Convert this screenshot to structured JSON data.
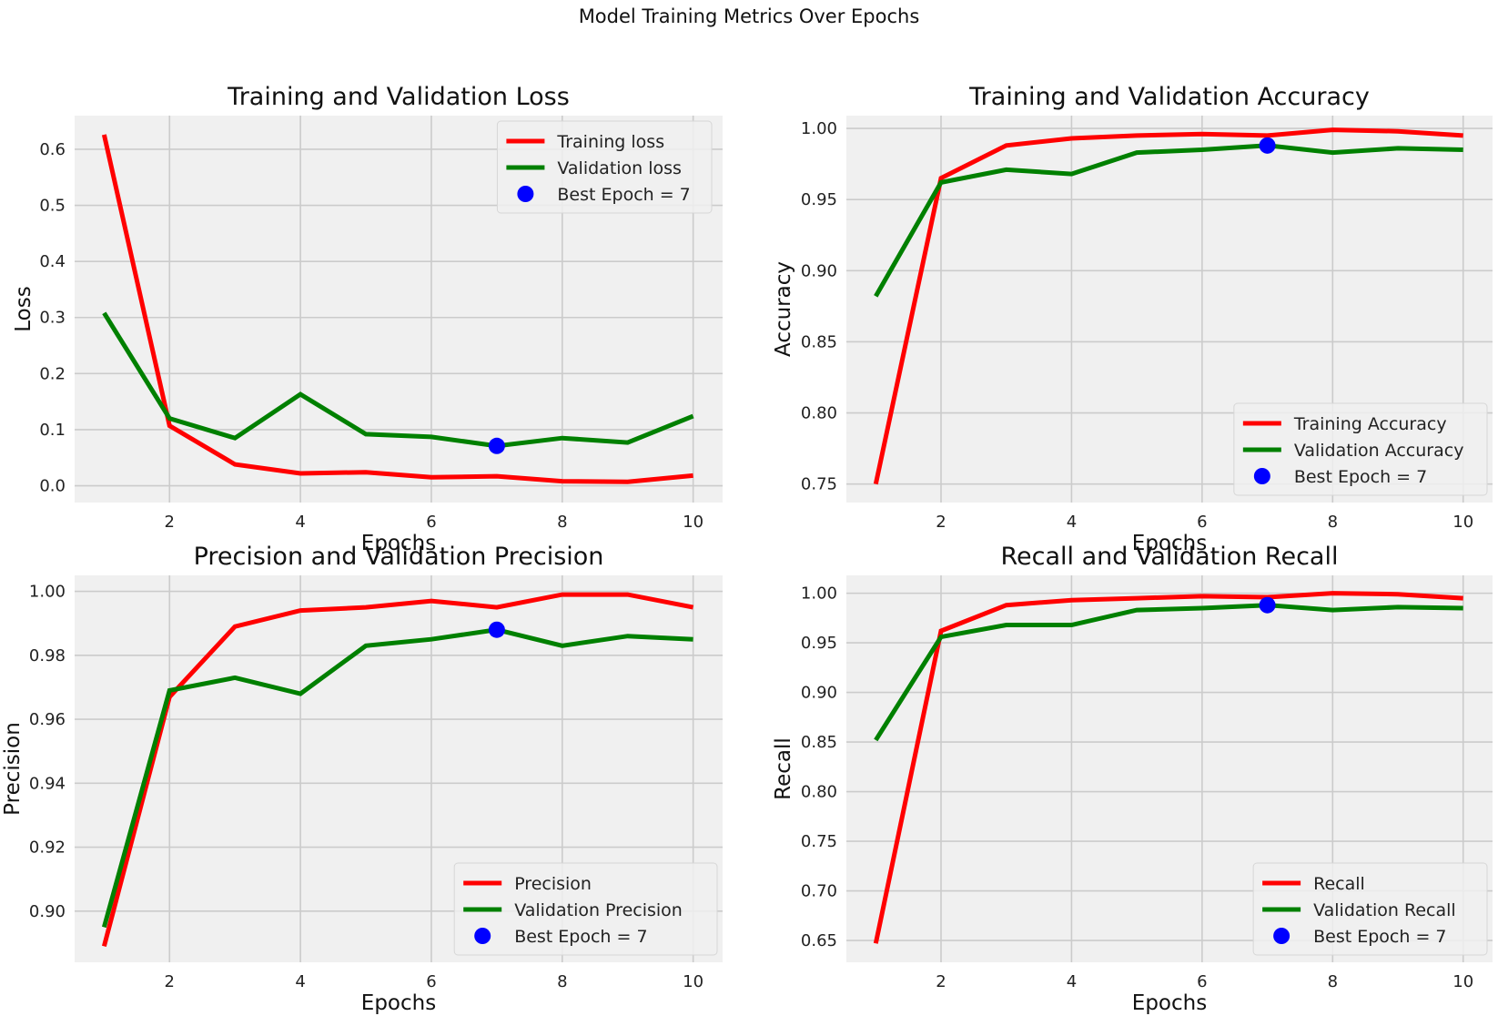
{
  "figure": {
    "suptitle": "Model Training Metrics Over Epochs"
  },
  "colors": {
    "train": "#ff0000",
    "val": "#008000",
    "best": "#0000ff",
    "panel_bg": "#f0f0f0",
    "grid": "#cbcbcb"
  },
  "chart_data": [
    {
      "type": "line",
      "title": "Training and Validation Loss",
      "xlabel": "Epochs",
      "ylabel": "Loss",
      "xlim": [
        0.55,
        10.45
      ],
      "ylim": [
        -0.03,
        0.66
      ],
      "xticks": [
        2,
        4,
        6,
        8,
        10
      ],
      "yticks": [
        0.0,
        0.1,
        0.2,
        0.3,
        0.4,
        0.5,
        0.6
      ],
      "ytick_labels": [
        "0.0",
        "0.1",
        "0.2",
        "0.3",
        "0.4",
        "0.5",
        "0.6"
      ],
      "grid": true,
      "legend_position": "top-right",
      "x": [
        1,
        2,
        3,
        4,
        5,
        6,
        7,
        8,
        9,
        10
      ],
      "series": [
        {
          "name": "Training loss",
          "color": "#ff0000",
          "values": [
            0.626,
            0.107,
            0.038,
            0.022,
            0.024,
            0.015,
            0.017,
            0.008,
            0.007,
            0.018
          ]
        },
        {
          "name": "Validation loss",
          "color": "#008000",
          "values": [
            0.308,
            0.12,
            0.085,
            0.163,
            0.092,
            0.087,
            0.071,
            0.085,
            0.077,
            0.124
          ]
        }
      ],
      "best_point": {
        "name": "Best Epoch = 7",
        "x": 7,
        "y": 0.071
      }
    },
    {
      "type": "line",
      "title": "Training and Validation Accuracy",
      "xlabel": "Epochs",
      "ylabel": "Accuracy",
      "xlim": [
        0.55,
        10.45
      ],
      "ylim": [
        0.737,
        1.009
      ],
      "xticks": [
        2,
        4,
        6,
        8,
        10
      ],
      "yticks": [
        0.75,
        0.8,
        0.85,
        0.9,
        0.95,
        1.0
      ],
      "ytick_labels": [
        "0.75",
        "0.80",
        "0.85",
        "0.90",
        "0.95",
        "1.00"
      ],
      "grid": true,
      "legend_position": "bottom-right",
      "x": [
        1,
        2,
        3,
        4,
        5,
        6,
        7,
        8,
        9,
        10
      ],
      "series": [
        {
          "name": "Training Accuracy",
          "color": "#ff0000",
          "values": [
            0.75,
            0.965,
            0.988,
            0.993,
            0.995,
            0.996,
            0.995,
            0.999,
            0.998,
            0.995
          ]
        },
        {
          "name": "Validation Accuracy",
          "color": "#008000",
          "values": [
            0.882,
            0.962,
            0.971,
            0.968,
            0.983,
            0.985,
            0.988,
            0.983,
            0.986,
            0.985
          ]
        }
      ],
      "best_point": {
        "name": "Best Epoch = 7",
        "x": 7,
        "y": 0.988
      }
    },
    {
      "type": "line",
      "title": "Precision and Validation Precision",
      "xlabel": "Epochs",
      "ylabel": "Precision",
      "xlim": [
        0.55,
        10.45
      ],
      "ylim": [
        0.884,
        1.005
      ],
      "xticks": [
        2,
        4,
        6,
        8,
        10
      ],
      "yticks": [
        0.9,
        0.92,
        0.94,
        0.96,
        0.98,
        1.0
      ],
      "ytick_labels": [
        "0.90",
        "0.92",
        "0.94",
        "0.96",
        "0.98",
        "1.00"
      ],
      "grid": true,
      "legend_position": "bottom-right",
      "x": [
        1,
        2,
        3,
        4,
        5,
        6,
        7,
        8,
        9,
        10
      ],
      "series": [
        {
          "name": "Precision",
          "color": "#ff0000",
          "values": [
            0.889,
            0.967,
            0.989,
            0.994,
            0.995,
            0.997,
            0.995,
            0.999,
            0.999,
            0.995
          ]
        },
        {
          "name": "Validation Precision",
          "color": "#008000",
          "values": [
            0.895,
            0.969,
            0.973,
            0.968,
            0.983,
            0.985,
            0.988,
            0.983,
            0.986,
            0.985
          ]
        }
      ],
      "best_point": {
        "name": "Best Epoch = 7",
        "x": 7,
        "y": 0.988
      }
    },
    {
      "type": "line",
      "title": "Recall and Validation Recall",
      "xlabel": "Epochs",
      "ylabel": "Recall",
      "xlim": [
        0.55,
        10.45
      ],
      "ylim": [
        0.628,
        1.018
      ],
      "xticks": [
        2,
        4,
        6,
        8,
        10
      ],
      "yticks": [
        0.65,
        0.7,
        0.75,
        0.8,
        0.85,
        0.9,
        0.95,
        1.0
      ],
      "ytick_labels": [
        "0.65",
        "0.70",
        "0.75",
        "0.80",
        "0.85",
        "0.90",
        "0.95",
        "1.00"
      ],
      "grid": true,
      "legend_position": "bottom-right",
      "x": [
        1,
        2,
        3,
        4,
        5,
        6,
        7,
        8,
        9,
        10
      ],
      "series": [
        {
          "name": "Recall",
          "color": "#ff0000",
          "values": [
            0.647,
            0.962,
            0.988,
            0.993,
            0.995,
            0.997,
            0.996,
            1.0,
            0.999,
            0.995
          ]
        },
        {
          "name": "Validation Recall",
          "color": "#008000",
          "values": [
            0.852,
            0.956,
            0.968,
            0.968,
            0.983,
            0.985,
            0.988,
            0.983,
            0.986,
            0.985
          ]
        }
      ],
      "best_point": {
        "name": "Best Epoch = 7",
        "x": 7,
        "y": 0.988
      }
    }
  ]
}
